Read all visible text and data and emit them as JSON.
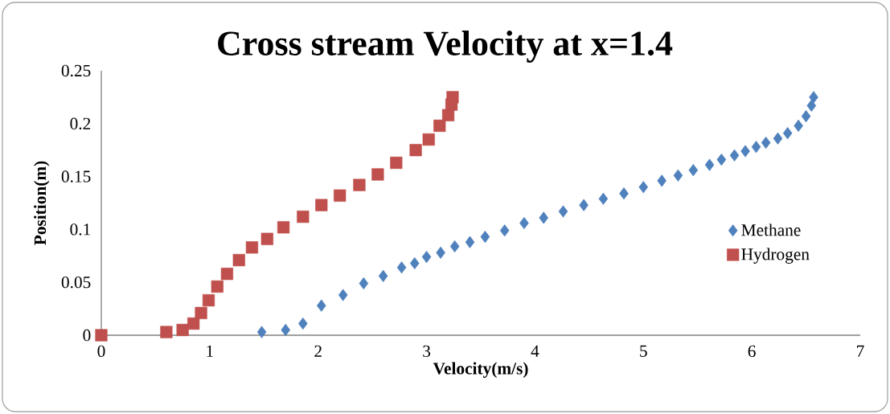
{
  "chart_data": {
    "type": "scatter",
    "title": "Cross stream Velocity at x=1.4",
    "xlabel": "Velocity(m/s)",
    "ylabel": "Position(m)",
    "xlim": [
      0,
      7
    ],
    "ylim": [
      0,
      0.25
    ],
    "xticks": [
      0,
      1,
      2,
      3,
      4,
      5,
      6,
      7
    ],
    "yticks": [
      0,
      0.05,
      0.1,
      {
        "value": 0.15,
        "label": "0.15"
      },
      0.2,
      0.25
    ],
    "legend": "right",
    "grid": false,
    "series": [
      {
        "name": "Methane",
        "color": "#4f81bd",
        "marker": "diamond",
        "x": [
          1.48,
          1.7,
          1.86,
          2.03,
          2.23,
          2.42,
          2.6,
          2.77,
          2.89,
          3.0,
          3.13,
          3.26,
          3.4,
          3.54,
          3.72,
          3.9,
          4.08,
          4.26,
          4.45,
          4.63,
          4.82,
          5.0,
          5.17,
          5.32,
          5.46,
          5.61,
          5.72,
          5.84,
          5.94,
          6.04,
          6.13,
          6.24,
          6.33,
          6.43,
          6.5,
          6.55,
          6.57
        ],
        "values": [
          0.003,
          0.005,
          0.011,
          0.028,
          0.038,
          0.049,
          0.056,
          0.064,
          0.068,
          0.074,
          0.078,
          0.084,
          0.088,
          0.093,
          0.099,
          0.106,
          0.111,
          0.117,
          0.123,
          0.129,
          0.134,
          0.14,
          0.146,
          0.151,
          0.156,
          0.161,
          0.166,
          0.17,
          0.174,
          0.178,
          0.182,
          0.186,
          0.191,
          0.198,
          0.207,
          0.217,
          0.225
        ]
      },
      {
        "name": "Hydrogen",
        "color": "#c0504d",
        "marker": "square",
        "x": [
          0,
          0.6,
          0.75,
          0.85,
          0.92,
          0.99,
          1.07,
          1.16,
          1.27,
          1.39,
          1.53,
          1.68,
          1.86,
          2.03,
          2.2,
          2.38,
          2.55,
          2.72,
          2.9,
          3.02,
          3.12,
          3.2,
          3.23,
          3.24
        ],
        "values": [
          0,
          0.003,
          0.005,
          0.011,
          0.021,
          0.033,
          0.046,
          0.058,
          0.071,
          0.083,
          0.091,
          0.102,
          0.112,
          0.123,
          0.132,
          0.142,
          0.152,
          0.163,
          0.175,
          0.185,
          0.198,
          0.208,
          0.218,
          0.225
        ]
      }
    ]
  }
}
